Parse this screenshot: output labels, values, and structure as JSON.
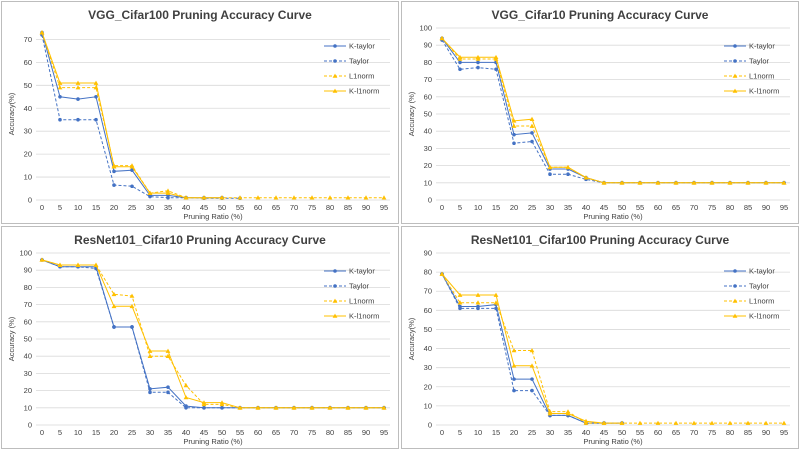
{
  "colors": {
    "k_taylor": "#4472c4",
    "taylor": "#4472c4",
    "l1norm": "#ffc000",
    "k_l1norm": "#ffc000"
  },
  "chart_data": [
    {
      "type": "line",
      "title": "VGG_Cifar100 Pruning Accuracy Curve",
      "xlabel": "Pruning  Ratio (%)",
      "ylabel": "Accuracy(%)",
      "categories": [
        "0",
        "5",
        "10",
        "15",
        "20",
        "25",
        "30",
        "35",
        "40",
        "45",
        "50",
        "55",
        "60",
        "65",
        "70",
        "75",
        "80",
        "85",
        "90",
        "95"
      ],
      "yticks": [
        "0",
        "10",
        "20",
        "30",
        "40",
        "50",
        "60",
        "70"
      ],
      "ylim": [
        0,
        75
      ],
      "legend_position": "right",
      "series": [
        {
          "name": "K-taylor",
          "style": "solid",
          "marker": "circle",
          "values": [
            73,
            45,
            44,
            45,
            12.5,
            13,
            2,
            2,
            1,
            1,
            1,
            null,
            null,
            null,
            null,
            null,
            null,
            null,
            null,
            null
          ]
        },
        {
          "name": "Taylor",
          "style": "dashed",
          "marker": "circle",
          "values": [
            72,
            35,
            35,
            35,
            6.5,
            6,
            1.5,
            1,
            1,
            0.8,
            0.8,
            0.8,
            null,
            null,
            null,
            null,
            null,
            null,
            null,
            null
          ]
        },
        {
          "name": "L1norm",
          "style": "dashed",
          "marker": "triangle",
          "values": [
            73,
            49,
            49,
            49,
            15,
            15,
            3,
            4,
            1,
            1,
            1,
            1,
            1,
            1,
            1,
            1,
            1,
            1,
            1,
            1
          ]
        },
        {
          "name": "K-l1norm",
          "style": "solid",
          "marker": "triangle",
          "values": [
            73,
            51,
            51,
            51,
            14.5,
            14.5,
            3,
            3,
            1,
            1,
            1,
            null,
            null,
            null,
            null,
            null,
            null,
            null,
            null,
            null
          ]
        }
      ]
    },
    {
      "type": "line",
      "title": "VGG_Cifar10 Pruning Accuracy Curve",
      "xlabel": "Pruning  Ratio (%)",
      "ylabel": "Accuracy  (%)",
      "categories": [
        "0",
        "5",
        "10",
        "15",
        "20",
        "25",
        "30",
        "35",
        "40",
        "45",
        "50",
        "55",
        "60",
        "65",
        "70",
        "75",
        "80",
        "85",
        "90",
        "95"
      ],
      "yticks": [
        "0",
        "10",
        "20",
        "30",
        "40",
        "50",
        "60",
        "70",
        "80",
        "90",
        "100"
      ],
      "ylim": [
        0,
        100
      ],
      "legend_position": "right",
      "series": [
        {
          "name": "K-taylor",
          "style": "solid",
          "marker": "circle",
          "values": [
            94,
            80,
            80,
            80,
            38,
            39,
            18,
            18,
            13,
            10,
            10,
            10,
            10,
            10,
            10,
            10,
            10,
            10,
            10,
            10
          ]
        },
        {
          "name": "Taylor",
          "style": "dashed",
          "marker": "circle",
          "values": [
            93,
            76,
            77,
            76,
            33,
            34,
            15,
            15,
            12,
            10,
            10,
            10,
            10,
            10,
            10,
            10,
            10,
            10,
            10,
            10
          ]
        },
        {
          "name": "L1norm",
          "style": "dashed",
          "marker": "triangle",
          "values": [
            94,
            82,
            82,
            82,
            43,
            43,
            19,
            19,
            13,
            10,
            10,
            10,
            10,
            10,
            10,
            10,
            10,
            10,
            10,
            10
          ]
        },
        {
          "name": "K-l1norm",
          "style": "solid",
          "marker": "triangle",
          "values": [
            94,
            83,
            83,
            83,
            46,
            47,
            19,
            19,
            13,
            10,
            10,
            10,
            10,
            10,
            10,
            10,
            10,
            10,
            10,
            10
          ]
        }
      ]
    },
    {
      "type": "line",
      "title": "ResNet101_Cifar10 Pruning Accuracy Curve",
      "xlabel": "Pruning  Ratio (%)",
      "ylabel": "Accuracy  (%)",
      "categories": [
        "0",
        "5",
        "10",
        "15",
        "20",
        "25",
        "30",
        "35",
        "40",
        "45",
        "50",
        "55",
        "60",
        "65",
        "70",
        "75",
        "80",
        "85",
        "90",
        "95"
      ],
      "yticks": [
        "0",
        "10",
        "20",
        "30",
        "40",
        "50",
        "60",
        "70",
        "80",
        "90",
        "100"
      ],
      "ylim": [
        0,
        100
      ],
      "legend_position": "right",
      "series": [
        {
          "name": "K-taylor",
          "style": "solid",
          "marker": "circle",
          "values": [
            96,
            92,
            92,
            92,
            57,
            57,
            21,
            22,
            11,
            10,
            10,
            10,
            10,
            10,
            10,
            10,
            10,
            10,
            10,
            10
          ]
        },
        {
          "name": "Taylor",
          "style": "dashed",
          "marker": "circle",
          "values": [
            96,
            92,
            92,
            91,
            57,
            57,
            19,
            19,
            10,
            10,
            10,
            10,
            10,
            10,
            10,
            10,
            10,
            10,
            10,
            10
          ]
        },
        {
          "name": "L1norm",
          "style": "dashed",
          "marker": "triangle",
          "values": [
            96,
            93,
            93,
            93,
            76,
            75,
            40,
            40,
            23,
            12,
            12,
            10,
            10,
            10,
            10,
            10,
            10,
            10,
            10,
            10
          ]
        },
        {
          "name": "K-l1norm",
          "style": "solid",
          "marker": "triangle",
          "values": [
            96,
            93,
            93,
            93,
            69,
            69,
            43,
            43,
            16,
            13,
            13,
            10,
            10,
            10,
            10,
            10,
            10,
            10,
            10,
            10
          ]
        }
      ]
    },
    {
      "type": "line",
      "title": "ResNet101_Cifar100 Pruning Accuracy Curve",
      "xlabel": "Pruning  Ratio (%)",
      "ylabel": "Accuracy(%)",
      "categories": [
        "0",
        "5",
        "10",
        "15",
        "20",
        "25",
        "30",
        "35",
        "40",
        "45",
        "50",
        "55",
        "60",
        "65",
        "70",
        "75",
        "80",
        "85",
        "90",
        "95"
      ],
      "yticks": [
        "0",
        "10",
        "20",
        "30",
        "40",
        "50",
        "60",
        "70",
        "80",
        "90"
      ],
      "ylim": [
        0,
        90
      ],
      "legend_position": "right",
      "series": [
        {
          "name": "K-taylor",
          "style": "solid",
          "marker": "circle",
          "values": [
            79,
            62,
            62,
            63,
            24,
            24,
            5,
            5,
            1,
            1,
            1,
            null,
            null,
            null,
            null,
            null,
            null,
            null,
            null,
            null
          ]
        },
        {
          "name": "Taylor",
          "style": "dashed",
          "marker": "circle",
          "values": [
            79,
            61,
            61,
            61,
            18,
            18,
            5,
            5,
            1,
            1,
            1,
            null,
            null,
            null,
            null,
            null,
            null,
            null,
            null,
            null
          ]
        },
        {
          "name": "L1norm",
          "style": "dashed",
          "marker": "triangle",
          "values": [
            79,
            64,
            64,
            64,
            39,
            39,
            7,
            7,
            1,
            1,
            1,
            1,
            1,
            1,
            1,
            1,
            1,
            1,
            1,
            1
          ]
        },
        {
          "name": "K-l1norm",
          "style": "solid",
          "marker": "triangle",
          "values": [
            79,
            68,
            68,
            68,
            31,
            31,
            6,
            6,
            2,
            1,
            1,
            null,
            null,
            null,
            null,
            null,
            null,
            null,
            null,
            null
          ]
        }
      ]
    }
  ]
}
